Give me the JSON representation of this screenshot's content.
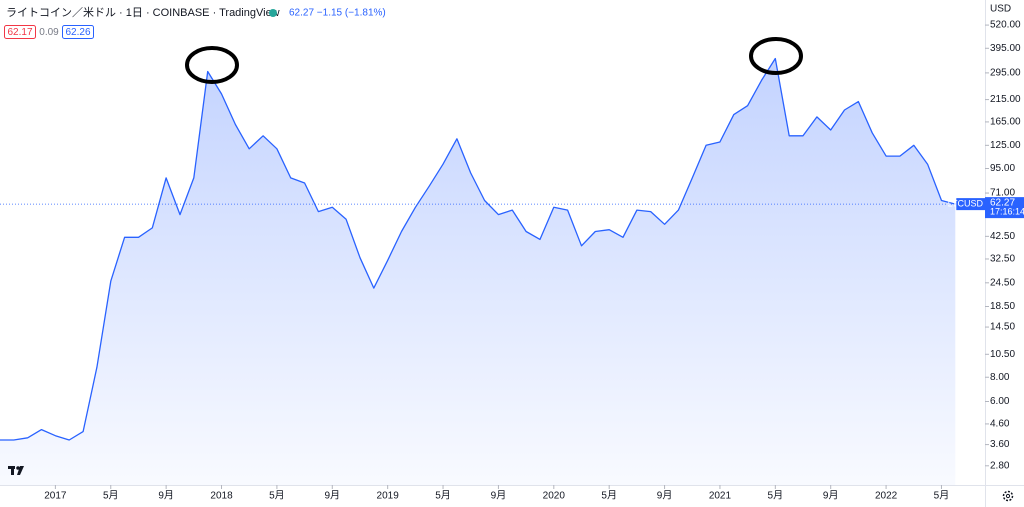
{
  "header": {
    "title": "ライトコイン／米ドル · 1日 · COINBASE · TradingView",
    "quote": "62.27 −1.15 (−1.81%)",
    "bid": "62.17",
    "spread": "0.09",
    "ask": "62.26"
  },
  "chart_data": {
    "type": "area",
    "currency": "USD",
    "symbol": "LTCUSD",
    "time": "17:16:14",
    "color": "#2962ff",
    "log_scale": true,
    "grid": false,
    "price_tag": {
      "value": 62.27,
      "label": "62.27"
    },
    "x": [
      "2016-09",
      "2016-10",
      "2016-11",
      "2016-12",
      "2017-01",
      "2017-02",
      "2017-03",
      "2017-04",
      "2017-05",
      "2017-06",
      "2017-07",
      "2017-08",
      "2017-09",
      "2017-10",
      "2017-11",
      "2017-12",
      "2018-01",
      "2018-02",
      "2018-03",
      "2018-04",
      "2018-05",
      "2018-06",
      "2018-07",
      "2018-08",
      "2018-09",
      "2018-10",
      "2018-11",
      "2018-12",
      "2019-01",
      "2019-02",
      "2019-03",
      "2019-04",
      "2019-05",
      "2019-06",
      "2019-07",
      "2019-08",
      "2019-09",
      "2019-10",
      "2019-11",
      "2019-12",
      "2020-01",
      "2020-02",
      "2020-03",
      "2020-04",
      "2020-05",
      "2020-06",
      "2020-07",
      "2020-08",
      "2020-09",
      "2020-10",
      "2020-11",
      "2020-12",
      "2021-01",
      "2021-02",
      "2021-03",
      "2021-04",
      "2021-05",
      "2021-06",
      "2021-07",
      "2021-08",
      "2021-09",
      "2021-10",
      "2021-11",
      "2021-12",
      "2022-01",
      "2022-02",
      "2022-03",
      "2022-04",
      "2022-05",
      "2022-06"
    ],
    "values": [
      3.8,
      3.8,
      3.9,
      4.3,
      4.0,
      3.8,
      4.2,
      9,
      25,
      42,
      42,
      47,
      85,
      55,
      85,
      300,
      230,
      160,
      120,
      140,
      120,
      85,
      80,
      57,
      60,
      52,
      33,
      23,
      32,
      45,
      60,
      77,
      100,
      135,
      90,
      65,
      55,
      58,
      45,
      41,
      60,
      58,
      38,
      45,
      46,
      42,
      58,
      57,
      49,
      58,
      85,
      125,
      130,
      180,
      200,
      270,
      350,
      140,
      140,
      175,
      150,
      190,
      210,
      145,
      110,
      110,
      125,
      100,
      65,
      62.27
    ],
    "xlim": [
      "2016-09",
      "2022-08"
    ],
    "xticks": [
      {
        "value": "2017-01",
        "label": "2017"
      },
      {
        "value": "2017-05",
        "label": "5月"
      },
      {
        "value": "2017-09",
        "label": "9月"
      },
      {
        "value": "2018-01",
        "label": "2018"
      },
      {
        "value": "2018-05",
        "label": "5月"
      },
      {
        "value": "2018-09",
        "label": "9月"
      },
      {
        "value": "2019-01",
        "label": "2019"
      },
      {
        "value": "2019-05",
        "label": "5月"
      },
      {
        "value": "2019-09",
        "label": "9月"
      },
      {
        "value": "2020-01",
        "label": "2020"
      },
      {
        "value": "2020-05",
        "label": "5月"
      },
      {
        "value": "2020-09",
        "label": "9月"
      },
      {
        "value": "2021-01",
        "label": "2021"
      },
      {
        "value": "2021-05",
        "label": "5月"
      },
      {
        "value": "2021-09",
        "label": "9月"
      },
      {
        "value": "2022-01",
        "label": "2022"
      },
      {
        "value": "2022-05",
        "label": "5月"
      }
    ],
    "ylim": [
      2.23,
      700
    ],
    "yticks": [
      {
        "value": 520,
        "label": "520.00"
      },
      {
        "value": 395,
        "label": "395.00"
      },
      {
        "value": 295,
        "label": "295.00"
      },
      {
        "value": 215,
        "label": "215.00"
      },
      {
        "value": 165,
        "label": "165.00"
      },
      {
        "value": 125,
        "label": "125.00"
      },
      {
        "value": 95,
        "label": "95.00"
      },
      {
        "value": 71,
        "label": "71.00"
      },
      {
        "value": 42.5,
        "label": "42.50"
      },
      {
        "value": 32.5,
        "label": "32.50"
      },
      {
        "value": 24.5,
        "label": "24.50"
      },
      {
        "value": 18.5,
        "label": "18.50"
      },
      {
        "value": 14.5,
        "label": "14.50"
      },
      {
        "value": 10.5,
        "label": "10.50"
      },
      {
        "value": 8,
        "label": "8.00"
      },
      {
        "value": 6,
        "label": "6.00"
      },
      {
        "value": 4.6,
        "label": "4.60"
      },
      {
        "value": 3.6,
        "label": "3.60"
      },
      {
        "value": 2.8,
        "label": "2.80"
      }
    ]
  }
}
